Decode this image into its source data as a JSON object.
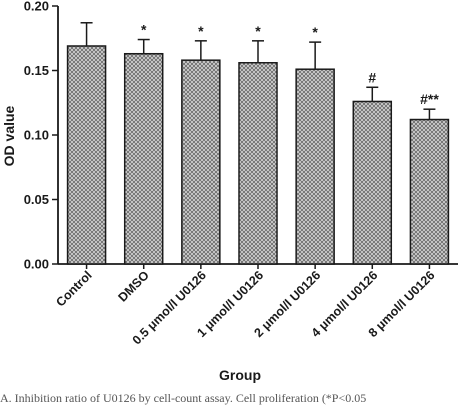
{
  "chart_data": {
    "type": "bar",
    "categories": [
      "Control",
      "DMSO",
      "0.5 μmol/l U0126",
      "1 μmol/l U0126",
      "2 μmol/l U0126",
      "4 μmol/l U0126",
      "8 μmol/l U0126"
    ],
    "values": [
      0.169,
      0.163,
      0.158,
      0.156,
      0.151,
      0.126,
      0.112
    ],
    "error_bars": [
      0.018,
      0.011,
      0.015,
      0.017,
      0.021,
      0.011,
      0.008
    ],
    "significance": [
      "",
      "*",
      "*",
      "*",
      "*",
      "#",
      "#**"
    ],
    "xlabel": "Group",
    "ylabel": "OD value",
    "ylim": [
      0,
      0.2
    ],
    "yticks": [
      "0.00",
      "0.05",
      "0.10",
      "0.15",
      "0.20"
    ],
    "grid": false,
    "bar_fill": "crosshatch",
    "colors": {
      "bar": "#9a9a9a",
      "axis": "#1a1a1a"
    }
  },
  "caption": "A. Inhibition ratio of U0126 by cell-count assay. Cell proliferation (*P<0.05"
}
